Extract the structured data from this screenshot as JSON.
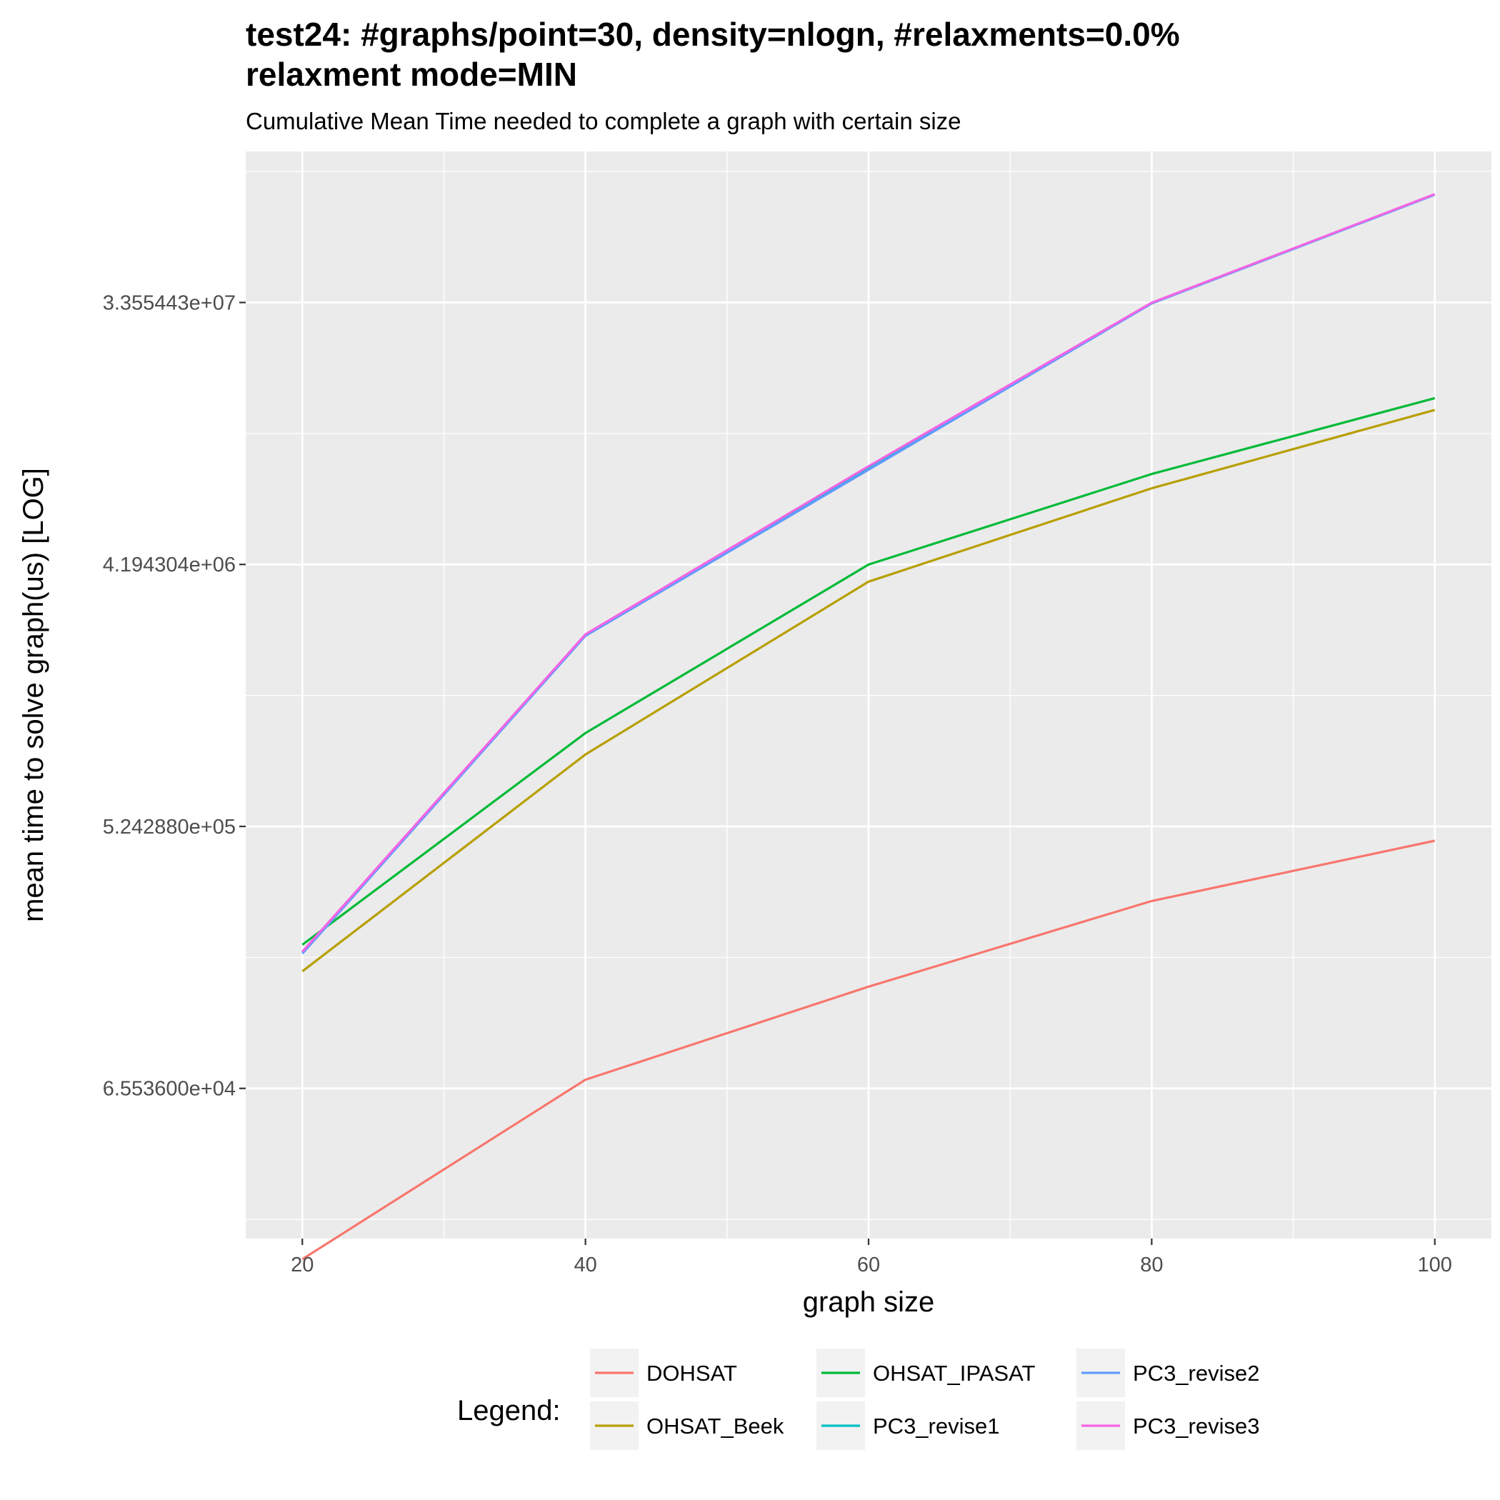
{
  "chart_data": {
    "type": "line",
    "title_line1": "test24: #graphs/point=30, density=nlogn, #relaxments=0.0%",
    "title_line2": "relaxment mode=MIN",
    "subtitle": "Cumulative Mean Time needed to complete a graph with certain size",
    "xlabel": "graph size",
    "ylabel": "mean time to solve graph(us) [LOG]",
    "x_scale": "linear",
    "y_scale": "log2",
    "xlim": [
      16,
      104
    ],
    "ylim_log2": [
      14.28,
      26.73
    ],
    "x_ticks": [
      20,
      40,
      60,
      80,
      100
    ],
    "y_ticks": [
      {
        "value": 65536,
        "label": "6.553600e+04"
      },
      {
        "value": 524288,
        "label": "5.242880e+05"
      },
      {
        "value": 4194304,
        "label": "4.194304e+06"
      },
      {
        "value": 33554432,
        "label": "3.355443e+07"
      }
    ],
    "grid": true,
    "legend_title": "Legend:",
    "legend_position": "bottom",
    "x": [
      20,
      40,
      60,
      80,
      100
    ],
    "series": [
      {
        "name": "DOHSAT",
        "color": "#F8766D",
        "values": [
          16900,
          70200,
          147000,
          290000,
          468000
        ]
      },
      {
        "name": "OHSAT_Beek",
        "color": "#B79F00",
        "values": [
          166000,
          928000,
          3660000,
          7680000,
          14300000
        ]
      },
      {
        "name": "OHSAT_IPASAT",
        "color": "#00BA38",
        "values": [
          205000,
          1100000,
          4190000,
          8600000,
          15700000
        ]
      },
      {
        "name": "PC3_revise1",
        "color": "#00BFC4",
        "values": [
          193000,
          2390000,
          9080000,
          33300000,
          79000000
        ]
      },
      {
        "name": "PC3_revise2",
        "color": "#619CFF",
        "values": [
          191000,
          2380000,
          8900000,
          33300000,
          79000000
        ]
      },
      {
        "name": "PC3_revise3",
        "color": "#F564E3",
        "values": [
          194000,
          2410000,
          9150000,
          33500000,
          79300000
        ]
      }
    ]
  }
}
